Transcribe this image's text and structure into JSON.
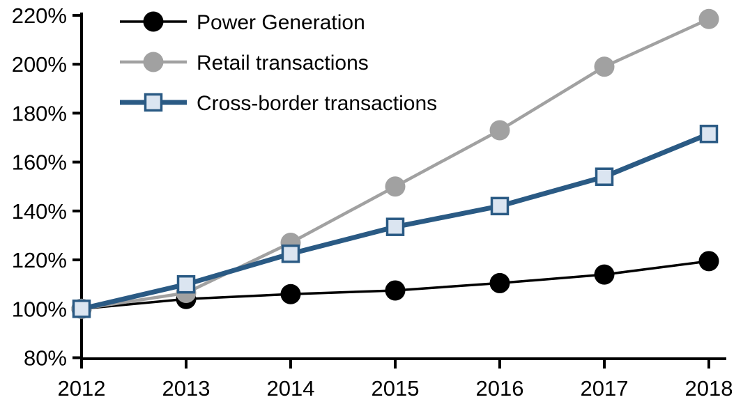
{
  "page": {
    "background": "#ffffff",
    "description": "Indexed growth line chart, 2012 = 100%"
  },
  "chart_data": {
    "type": "line",
    "title": "",
    "xlabel": "",
    "ylabel": "",
    "categories": [
      "2012",
      "2013",
      "2014",
      "2015",
      "2016",
      "2017",
      "2018"
    ],
    "ylim": [
      80,
      220
    ],
    "y_tick_step": 20,
    "y_tick_labels": [
      "80%",
      "100%",
      "120%",
      "140%",
      "160%",
      "180%",
      "200%",
      "220%"
    ],
    "grid": false,
    "legend_position": "top-left",
    "axis_color": "#000000",
    "series": [
      {
        "name": "Power Generation",
        "color": "#000000",
        "marker": "circle",
        "marker_fill": "#000000",
        "line_width": 3.5,
        "values": [
          100,
          104,
          106,
          107.5,
          110.5,
          114,
          119.5
        ]
      },
      {
        "name": "Retail transactions",
        "color": "#a1a1a1",
        "marker": "circle",
        "marker_fill": "#a1a1a1",
        "line_width": 4.5,
        "values": [
          100,
          106.5,
          127,
          150,
          173,
          199,
          218.5
        ]
      },
      {
        "name": "Cross-border transactions",
        "color": "#2a5a84",
        "marker": "square",
        "marker_fill": "#dbe5f1",
        "line_width": 7,
        "values": [
          100,
          110,
          122.5,
          133.5,
          142,
          154,
          171.5
        ]
      }
    ]
  }
}
